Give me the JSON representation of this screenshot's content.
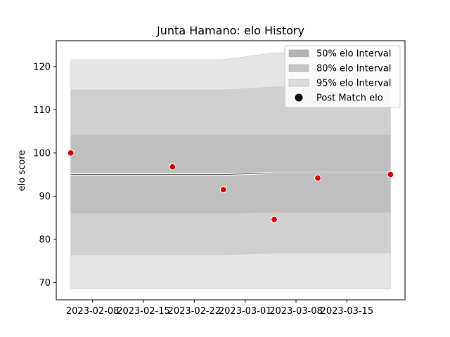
{
  "chart_data": {
    "type": "line",
    "title": "Junta Hamano: elo History",
    "xlabel": "",
    "ylabel": "elo score",
    "xlim": [
      "2023-02-03",
      "2023-03-23"
    ],
    "ylim": [
      66,
      126
    ],
    "x_ticks": [
      "2023-02-08",
      "2023-02-15",
      "2023-02-22",
      "2023-03-01",
      "2023-03-08",
      "2023-03-15"
    ],
    "y_ticks": [
      70,
      80,
      90,
      100,
      110,
      120
    ],
    "grid": false,
    "legend_position": "upper right",
    "band_dates": [
      "2023-02-05",
      "2023-02-26",
      "2023-03-05",
      "2023-03-21"
    ],
    "mean_line": [
      95.0,
      95.0,
      95.4,
      95.4
    ],
    "bands": [
      {
        "name": "95% elo Interval",
        "lower": [
          68.5,
          68.5,
          68.5,
          68.5
        ],
        "upper": [
          121.6,
          121.6,
          123.2,
          123.2
        ],
        "color": "#e5e5e5"
      },
      {
        "name": "80% elo Interval",
        "lower": [
          76.4,
          76.4,
          76.8,
          76.8
        ],
        "upper": [
          114.6,
          114.6,
          115.3,
          115.3
        ],
        "color": "#d0d0d0"
      },
      {
        "name": "50% elo Interval",
        "lower": [
          86.0,
          86.0,
          86.2,
          86.2
        ],
        "upper": [
          104.2,
          104.2,
          104.2,
          104.2
        ],
        "color": "#bfbfbf"
      }
    ],
    "series": [
      {
        "name": "Post Match elo",
        "color": "#dd0000",
        "x": [
          "2023-02-05",
          "2023-02-19",
          "2023-02-26",
          "2023-03-05",
          "2023-03-11",
          "2023-03-21"
        ],
        "y": [
          100.0,
          96.8,
          91.5,
          84.6,
          94.2,
          95.0
        ]
      }
    ],
    "legend": [
      {
        "label": "50% elo Interval",
        "swatch": "#b3b3b3"
      },
      {
        "label": "80% elo Interval",
        "swatch": "#c6c6c6"
      },
      {
        "label": "95% elo Interval",
        "swatch": "#dcdcdc"
      },
      {
        "label": "Post Match elo",
        "swatch": "#000000"
      }
    ]
  }
}
